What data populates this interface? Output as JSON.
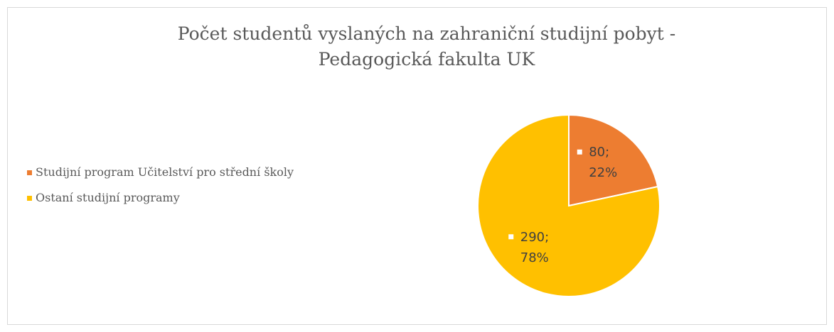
{
  "chart_data": {
    "type": "pie",
    "title": "Počet studentů vyslaných na zahraniční studijní pobyt - Pedagogická fakulta UK",
    "categories": [
      "Studijní program Učitelství pro střední školy",
      "Ostaní studijní programy"
    ],
    "values": [
      80,
      290
    ],
    "value_labels": [
      "80;",
      "290;"
    ],
    "percent_labels": [
      "22%",
      "78%"
    ],
    "colors": [
      "#ED7D31",
      "#FFC000"
    ],
    "legend": "left"
  }
}
